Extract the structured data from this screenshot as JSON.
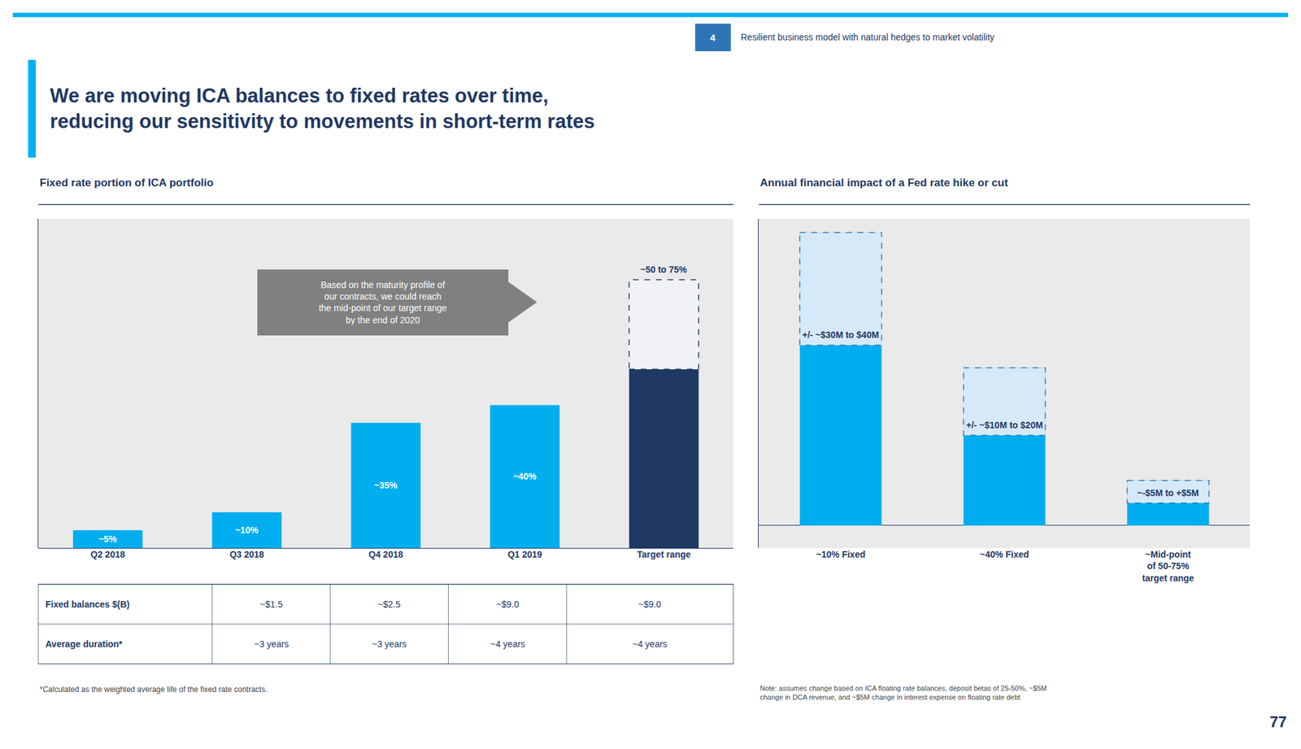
{
  "header": {
    "number": "4",
    "text": "Resilient business model with natural hedges to market volatility"
  },
  "title": "We are moving ICA balances to fixed rates over time,\nreducing our sensitivity to movements in short-term rates",
  "chart_data": [
    {
      "type": "bar",
      "title": "Fixed rate portion of ICA portfolio",
      "categories": [
        "Q2 2018",
        "Q3 2018",
        "Q4 2018",
        "Q1 2019",
        "Target range"
      ],
      "values": [
        5,
        10,
        35,
        40,
        50
      ],
      "colors": [
        "#00AEEF",
        "#00AEEF",
        "#00AEEF",
        "#00AEEF",
        "#1F3864"
      ],
      "data_labels": true,
      "value_labels": [
        "~5%",
        "~10%",
        "~35%",
        "~40%",
        null
      ],
      "range_ends": [
        null,
        null,
        null,
        null,
        75
      ],
      "range_labels": [
        null,
        null,
        null,
        null,
        "~50 to 75%"
      ],
      "annotations": [
        {
          "text": "Based on the maturity profile of\nour contracts, we could reach\nthe mid-point of our target range\nby the end of 2020"
        }
      ],
      "ylim": [
        0,
        92
      ],
      "grid": false,
      "tick_labels": "x"
    },
    {
      "type": "bar",
      "title": "Annual financial impact of a Fed rate hike or cut",
      "categories": [
        "~10% Fixed",
        "~40% Fixed",
        "~Mid-point\nof 50-75%\ntarget range"
      ],
      "values": [
        65,
        35,
        10
      ],
      "color": "#00AEEF",
      "range_ends": [
        40,
        20,
        5
      ],
      "range_labels": [
        "+/- ~$30M to $40M",
        "+/- ~$10M to $20M",
        "~-$5M to +$5M"
      ],
      "ylim": [
        -5,
        68
      ],
      "grid": false,
      "tick_labels": "x"
    }
  ],
  "table": {
    "rows": [
      [
        "Fixed balances $(B)",
        "~$1.5",
        "~$2.5",
        "~$9.0",
        "~$9.0"
      ],
      [
        "Average duration*",
        "~3 years",
        "~3 years",
        "~4 years",
        "~4 years"
      ]
    ]
  },
  "notes": [
    "*Calculated as the weighted average life of the fixed rate contracts.",
    "Note: assumes change based on ICA floating rate balances, deposit betas of 25-50%, ~$5M\nchange in DCA revenue, and ~$5M change in interest expense on floating rate debt"
  ],
  "page_number": "77"
}
